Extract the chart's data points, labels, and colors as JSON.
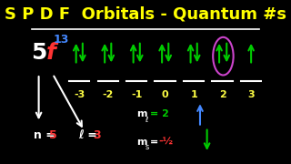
{
  "title": "S P D F  Orbitals - Quantum #s",
  "background_color": "#000000",
  "title_color": "#ffff00",
  "title_fontsize": 13,
  "ml_values": [
    "-3",
    "-2",
    "-1",
    "0",
    "1",
    "2",
    "3"
  ],
  "arrow_color": "#00cc00",
  "ml_label_color": "#ffff44",
  "white": "#ffffff",
  "red": "#ff3333",
  "blue": "#4488ff",
  "purple": "#cc44cc",
  "green": "#00cc00"
}
